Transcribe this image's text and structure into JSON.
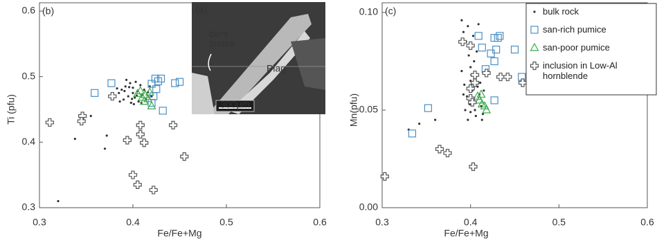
{
  "chart_data": [
    {
      "type": "scatter",
      "panel_label": "(b)",
      "xlabel": "Fe/Fe+Mg",
      "ylabel": "Ti (pfu)",
      "xlim": [
        0.3,
        0.6
      ],
      "ylim": [
        0.3,
        0.6
      ],
      "xticks": [
        0.3,
        0.4,
        0.5,
        0.6
      ],
      "yticks": [
        0.3,
        0.4,
        0.5,
        0.6
      ],
      "inset": {
        "label": "(a)",
        "annotations": [
          "bent",
          "biotite",
          "Plag",
          "300μm"
        ]
      },
      "series": [
        {
          "color": "#333333",
          "marker": "dot",
          "x": [
            0.32,
            0.355,
            0.37,
            0.372,
            0.338,
            0.38,
            0.385,
            0.388,
            0.39,
            0.392,
            0.395,
            0.397,
            0.398,
            0.4,
            0.4,
            0.402,
            0.403,
            0.405,
            0.406,
            0.408,
            0.41,
            0.412,
            0.414,
            0.416,
            0.418,
            0.42,
            0.386,
            0.391,
            0.396,
            0.399,
            0.404,
            0.409,
            0.393,
            0.383,
            0.401
          ],
          "values": [
            0.31,
            0.44,
            0.39,
            0.41,
            0.405,
            0.47,
            0.475,
            0.48,
            0.465,
            0.485,
            0.47,
            0.49,
            0.46,
            0.475,
            0.483,
            0.468,
            0.492,
            0.478,
            0.462,
            0.487,
            0.472,
            0.48,
            0.465,
            0.476,
            0.485,
            0.47,
            0.462,
            0.478,
            0.484,
            0.466,
            0.471,
            0.46,
            0.495,
            0.482,
            0.458
          ]
        },
        {
          "color": "#4a8fc4",
          "marker": "square",
          "x": [
            0.359,
            0.377,
            0.42,
            0.424,
            0.427,
            0.43,
            0.425,
            0.422,
            0.42,
            0.432,
            0.445,
            0.45
          ],
          "values": [
            0.475,
            0.49,
            0.489,
            0.497,
            0.493,
            0.497,
            0.481,
            0.47,
            0.46,
            0.448,
            0.49,
            0.492
          ]
        },
        {
          "color": "#3aa84a",
          "marker": "triangle",
          "x": [
            0.405,
            0.408,
            0.41,
            0.413,
            0.416,
            0.418,
            0.412,
            0.42
          ],
          "values": [
            0.474,
            0.478,
            0.468,
            0.472,
            0.466,
            0.476,
            0.462,
            0.455
          ]
        },
        {
          "color": "#555555",
          "marker": "cross",
          "x": [
            0.311,
            0.346,
            0.345,
            0.378,
            0.408,
            0.408,
            0.394,
            0.412,
            0.4,
            0.405,
            0.443,
            0.422,
            0.455
          ],
          "values": [
            0.43,
            0.44,
            0.432,
            0.47,
            0.426,
            0.412,
            0.403,
            0.399,
            0.35,
            0.335,
            0.426,
            0.327,
            0.378
          ]
        }
      ]
    },
    {
      "type": "scatter",
      "panel_label": "(c)",
      "xlabel": "Fe/Fe+Mg",
      "ylabel": "Mn(pfu)",
      "xlim": [
        0.3,
        0.6
      ],
      "ylim": [
        0,
        0.1
      ],
      "xticks": [
        0.3,
        0.4,
        0.5,
        0.6
      ],
      "yticks": [
        {
          "value": 0,
          "label": "0.00"
        },
        {
          "value": 0.05,
          "label": "0.05"
        },
        {
          "value": 0.1,
          "label": "0.10"
        }
      ],
      "legend": "upper right",
      "series": [
        {
          "name": "bulk rock",
          "color": "#333333",
          "marker": "dot",
          "x": [
            0.33,
            0.342,
            0.36,
            0.39,
            0.392,
            0.395,
            0.397,
            0.398,
            0.4,
            0.4,
            0.402,
            0.403,
            0.405,
            0.406,
            0.408,
            0.41,
            0.412,
            0.414,
            0.39,
            0.393,
            0.396,
            0.399,
            0.401,
            0.404,
            0.407,
            0.411,
            0.413,
            0.394,
            0.397,
            0.403,
            0.409,
            0.415,
            0.392,
            0.4,
            0.406
          ],
          "values": [
            0.04,
            0.043,
            0.045,
            0.096,
            0.09,
            0.085,
            0.093,
            0.078,
            0.072,
            0.065,
            0.06,
            0.055,
            0.05,
            0.047,
            0.062,
            0.058,
            0.052,
            0.048,
            0.07,
            0.063,
            0.057,
            0.053,
            0.068,
            0.075,
            0.08,
            0.064,
            0.045,
            0.05,
            0.045,
            0.088,
            0.094,
            0.06,
            0.058,
            0.049,
            0.067
          ]
        },
        {
          "name": "san-rich pumice",
          "color": "#4a8fc4",
          "marker": "square",
          "x": [
            0.334,
            0.352,
            0.409,
            0.413,
            0.417,
            0.423,
            0.427,
            0.431,
            0.433,
            0.429,
            0.427,
            0.45,
            0.458,
            0.427
          ],
          "values": [
            0.038,
            0.051,
            0.088,
            0.082,
            0.071,
            0.079,
            0.087,
            0.087,
            0.088,
            0.081,
            0.075,
            0.081,
            0.067,
            0.055
          ]
        },
        {
          "name": "san-poor pumice",
          "color": "#3aa84a",
          "marker": "triangle",
          "x": [
            0.408,
            0.41,
            0.412,
            0.413,
            0.416,
            0.418
          ],
          "values": [
            0.057,
            0.055,
            0.058,
            0.053,
            0.052,
            0.05
          ]
        },
        {
          "name": "inclusion in Low-Al hornblende",
          "color": "#555555",
          "marker": "cross",
          "x": [
            0.303,
            0.365,
            0.374,
            0.403,
            0.391,
            0.4,
            0.418,
            0.434,
            0.442,
            0.459,
            0.405,
            0.4,
            0.4,
            0.402,
            0.405
          ],
          "values": [
            0.016,
            0.03,
            0.028,
            0.021,
            0.085,
            0.083,
            0.069,
            0.067,
            0.067,
            0.064,
            0.068,
            0.061,
            0.056,
            0.054,
            0.064
          ]
        }
      ]
    }
  ]
}
